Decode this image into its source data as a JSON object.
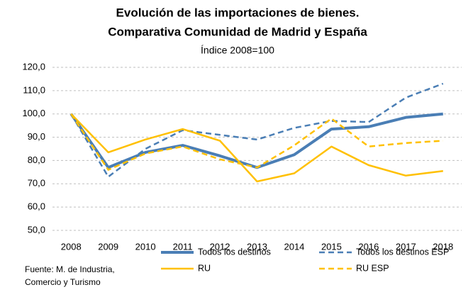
{
  "chart_data": {
    "type": "line",
    "title": [
      "Evolución de las importaciones de bienes.",
      "Comparativa Comunidad de Madrid y España"
    ],
    "subtitle": "Índice 2008=100",
    "source": [
      "Fuente: M. de Industria,",
      "Comercio y Turismo"
    ],
    "categories": [
      "2008",
      "2009",
      "2010",
      "2011",
      "2012",
      "2013",
      "2014",
      "2015",
      "2016",
      "2017",
      "2018"
    ],
    "series": [
      {
        "name": "Todos los destinos",
        "color": "#4a7eb5",
        "dashed": false,
        "width": 4,
        "values": [
          100,
          77,
          83.5,
          86.5,
          82,
          77,
          82.5,
          93.5,
          94.5,
          98.5,
          100
        ]
      },
      {
        "name": "Todos los destinos ESP",
        "color": "#4a7eb5",
        "dashed": true,
        "width": 2.5,
        "values": [
          100,
          73,
          85,
          93,
          91,
          89,
          94,
          97,
          96.5,
          107,
          113
        ]
      },
      {
        "name": "RU",
        "color": "#ffc000",
        "dashed": false,
        "width": 2.5,
        "values": [
          100,
          83.5,
          89,
          93.5,
          88.5,
          71,
          74.5,
          86,
          78,
          73.5,
          75.5
        ]
      },
      {
        "name": "RU ESP",
        "color": "#ffc000",
        "dashed": true,
        "width": 2.5,
        "values": [
          100,
          76,
          83,
          86,
          80.5,
          77,
          86.5,
          98,
          86,
          87.5,
          88.5
        ]
      }
    ],
    "ylim": [
      50,
      120
    ],
    "yticks": [
      {
        "value": 50,
        "label": "50,0"
      },
      {
        "value": 60,
        "label": "60,0"
      },
      {
        "value": 70,
        "label": "70,0"
      },
      {
        "value": 80,
        "label": "80,0"
      },
      {
        "value": 90,
        "label": "90,0"
      },
      {
        "value": 100,
        "label": "100,0"
      },
      {
        "value": 110,
        "label": "110,0"
      },
      {
        "value": 120,
        "label": "120,0"
      }
    ],
    "grid": true,
    "legend": "bottom"
  }
}
